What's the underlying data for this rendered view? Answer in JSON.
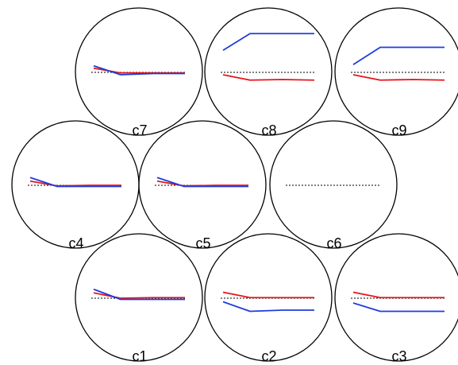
{
  "colors": {
    "circle_stroke": "#000000",
    "red_series": "#e8141a",
    "blue_series": "#1f3cdc",
    "baseline": "#000000"
  },
  "cells": [
    {
      "label": "c7",
      "red": [
        0.35,
        -0.05,
        -0.05,
        -0.05
      ],
      "blue": [
        0.55,
        -0.2,
        -0.1,
        -0.1
      ]
    },
    {
      "label": "c8",
      "red": [
        -0.2,
        -0.65,
        -0.6,
        -0.65
      ],
      "blue": [
        1.85,
        3.25,
        3.25,
        3.25
      ]
    },
    {
      "label": "c9",
      "red": [
        -0.2,
        -0.65,
        -0.6,
        -0.65
      ],
      "blue": [
        0.65,
        2.1,
        2.1,
        2.1
      ]
    },
    {
      "label": "c4",
      "red": [
        0.35,
        -0.05,
        0.0,
        0.0
      ],
      "blue": [
        0.65,
        -0.1,
        -0.1,
        -0.1
      ]
    },
    {
      "label": "c5",
      "red": [
        0.35,
        -0.05,
        0.0,
        0.0
      ],
      "blue": [
        0.65,
        -0.1,
        -0.1,
        -0.1
      ]
    },
    {
      "label": "c6",
      "red": null,
      "blue": null
    },
    {
      "label": "c1",
      "red": [
        0.45,
        0.0,
        0.05,
        0.05
      ],
      "blue": [
        0.75,
        -0.1,
        -0.1,
        -0.1
      ]
    },
    {
      "label": "c2",
      "red": [
        0.5,
        0.05,
        0.05,
        0.05
      ],
      "blue": [
        -0.3,
        -1.1,
        -1.0,
        -1.0
      ]
    },
    {
      "label": "c3",
      "red": [
        0.5,
        0.05,
        0.05,
        0.05
      ],
      "blue": [
        -0.4,
        -1.1,
        -1.1,
        -1.1
      ]
    }
  ]
}
